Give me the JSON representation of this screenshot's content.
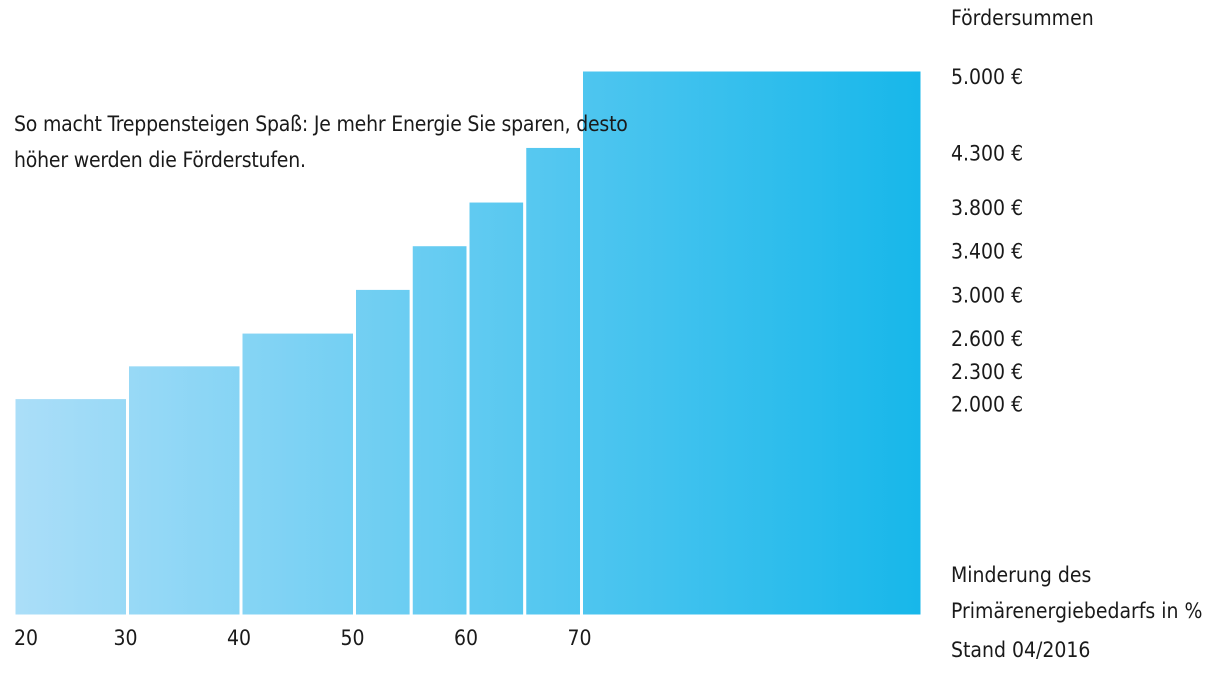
{
  "caption": "So macht Treppensteigen Spaß: Je mehr Energie Sie sparen, desto höher werden die Förderstufen.",
  "chart_data": {
    "type": "bar",
    "title": "",
    "ylabel": "Fördersummen",
    "xlabel": "Minderung des Primärenergiebedarfs in %",
    "xlim": [
      20,
      100
    ],
    "ylim": [
      0,
      5000
    ],
    "steps": [
      {
        "from": 20,
        "to": 30,
        "value": 2000,
        "label": "2.000 €"
      },
      {
        "from": 30,
        "to": 40,
        "value": 2300,
        "label": "2.300 €"
      },
      {
        "from": 40,
        "to": 50,
        "value": 2600,
        "label": "2.600 €"
      },
      {
        "from": 50,
        "to": 55,
        "value": 3000,
        "label": "3.000 €"
      },
      {
        "from": 55,
        "to": 60,
        "value": 3400,
        "label": "3.400 €"
      },
      {
        "from": 60,
        "to": 65,
        "value": 3800,
        "label": "3.800 €"
      },
      {
        "from": 65,
        "to": 70,
        "value": 4300,
        "label": "4.300 €"
      },
      {
        "from": 70,
        "to": 100,
        "value": 5000,
        "label": "5.000 €"
      }
    ],
    "x_ticks": [
      "20",
      "30",
      "40",
      "50",
      "60",
      "70"
    ],
    "colors": {
      "start": "#abdef8",
      "end": "#17b7ea",
      "separator": "#ffffff"
    }
  },
  "note": "Stand 04/2016"
}
